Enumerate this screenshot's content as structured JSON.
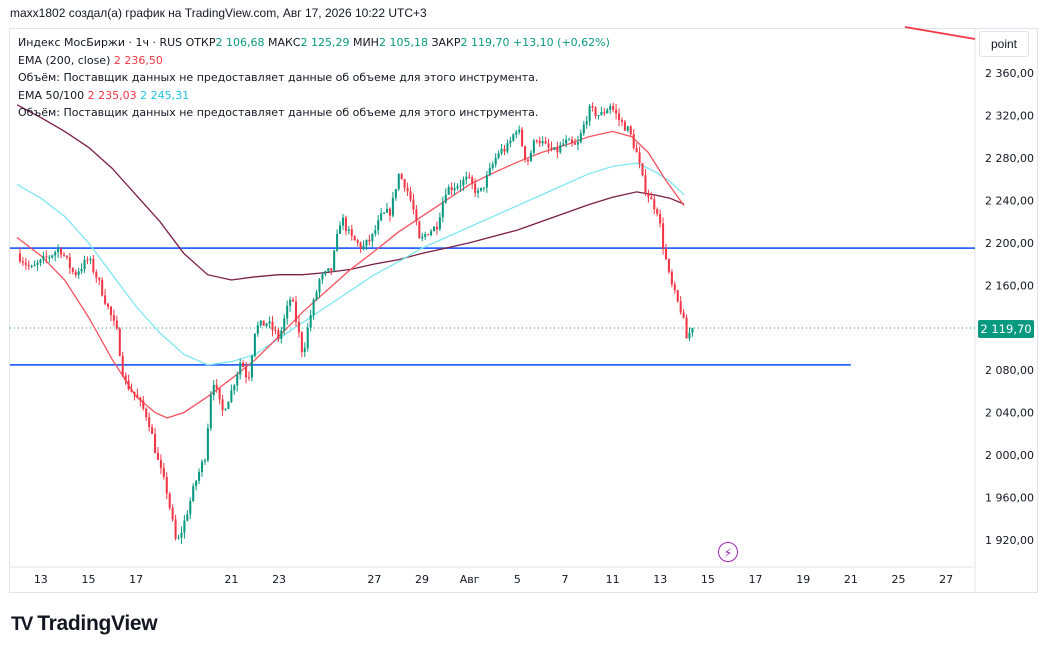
{
  "header": {
    "caption": "maxx1802 создал(а) график на TradingView.com, Авг 17, 2026 10:22 UTC+3"
  },
  "legend": {
    "instrument": "Индекс МосБиржи · 1ч · RUS",
    "open_label": "ОТКР",
    "open_value": "2 106,68",
    "high_label": "МАКС",
    "high_value": "2 125,29",
    "low_label": "МИН",
    "low_value": "2 105,18",
    "close_label": "ЗАКР",
    "close_value": "2 119,70",
    "change": "+13,10 (+0,62%)",
    "volume_note": "Объём: Поставщик данных не предоставляет данные об объеме для этого инструмента.",
    "ema200_label": "EMA (200, close)",
    "ema200_value": "2 236,50",
    "ema50_100_label": "EMA 50/100",
    "ema50_value": "2 235,03",
    "ema100_value": "2 245,31",
    "volume_note2": "Объём: Поставщик данных не предоставляет данные об объеме для этого инструмента."
  },
  "toolbar": {
    "point_label": "point"
  },
  "price_badge": {
    "value": "2 119,70",
    "color": "#089981"
  },
  "event_icon": "lightning-icon",
  "branding": {
    "logo_text": "TradingView",
    "mark": "TV"
  },
  "chart_data": {
    "type": "candlestick",
    "y_ticks": [
      {
        "value": 2360,
        "label": "2 360,00"
      },
      {
        "value": 2320,
        "label": "2 320,00"
      },
      {
        "value": 2280,
        "label": "2 280,00"
      },
      {
        "value": 2240,
        "label": "2 240,00"
      },
      {
        "value": 2200,
        "label": "2 200,00"
      },
      {
        "value": 2160,
        "label": "2 160,00"
      },
      {
        "value": 2120,
        "label": "2 120,00"
      },
      {
        "value": 2080,
        "label": "2 080,00"
      },
      {
        "value": 2040,
        "label": "2 040,00"
      },
      {
        "value": 2000,
        "label": "2 000,00"
      },
      {
        "value": 1960,
        "label": "1 960,00"
      },
      {
        "value": 1920,
        "label": "1 920,00"
      }
    ],
    "x_ticks": [
      {
        "day": 13,
        "label": "13"
      },
      {
        "day": 15,
        "label": "15"
      },
      {
        "day": 17,
        "label": "17"
      },
      {
        "day": 21,
        "label": "21"
      },
      {
        "day": 23,
        "label": "23"
      },
      {
        "day": 27,
        "label": "27"
      },
      {
        "day": 29,
        "label": "29"
      },
      {
        "day": 31,
        "label": "Авг"
      },
      {
        "day": 33,
        "label": "5"
      },
      {
        "day": 35,
        "label": "7"
      },
      {
        "day": 37,
        "label": "11"
      },
      {
        "day": 39,
        "label": "13"
      },
      {
        "day": 41,
        "label": "15"
      },
      {
        "day": 43,
        "label": "17"
      },
      {
        "day": 45,
        "label": "19"
      },
      {
        "day": 47,
        "label": "21"
      },
      {
        "day": 49,
        "label": "25"
      },
      {
        "day": 51,
        "label": "27"
      }
    ],
    "ylim": [
      1900,
      2385
    ],
    "horizontal_lines": [
      {
        "value": 2195,
        "color": "#2962ff"
      },
      {
        "value": 2085,
        "color": "#2962ff"
      }
    ],
    "last_price_line": {
      "value": 2119.7
    },
    "close_anchors": [
      [
        12.0,
        2190
      ],
      [
        12.6,
        2175
      ],
      [
        13.2,
        2185
      ],
      [
        13.8,
        2195
      ],
      [
        14.4,
        2170
      ],
      [
        15.0,
        2185
      ],
      [
        15.4,
        2165
      ],
      [
        15.8,
        2140
      ],
      [
        16.2,
        2115
      ],
      [
        16.5,
        2070
      ],
      [
        17.0,
        2055
      ],
      [
        17.5,
        2035
      ],
      [
        17.9,
        1995
      ],
      [
        18.3,
        1965
      ],
      [
        18.7,
        1915
      ],
      [
        19.0,
        1935
      ],
      [
        19.5,
        1975
      ],
      [
        19.9,
        2000
      ],
      [
        20.2,
        2075
      ],
      [
        20.6,
        2040
      ],
      [
        21.0,
        2060
      ],
      [
        21.4,
        2090
      ],
      [
        21.7,
        2070
      ],
      [
        22.0,
        2120
      ],
      [
        22.5,
        2125
      ],
      [
        23.0,
        2110
      ],
      [
        23.5,
        2150
      ],
      [
        24.0,
        2095
      ],
      [
        24.3,
        2130
      ],
      [
        24.7,
        2165
      ],
      [
        25.2,
        2175
      ],
      [
        25.6,
        2225
      ],
      [
        26.0,
        2205
      ],
      [
        26.5,
        2195
      ],
      [
        26.9,
        2205
      ],
      [
        27.3,
        2225
      ],
      [
        27.7,
        2230
      ],
      [
        28.0,
        2265
      ],
      [
        28.3,
        2255
      ],
      [
        28.6,
        2235
      ],
      [
        28.9,
        2200
      ],
      [
        29.2,
        2210
      ],
      [
        29.6,
        2215
      ],
      [
        30.0,
        2250
      ],
      [
        30.5,
        2255
      ],
      [
        30.9,
        2260
      ],
      [
        31.4,
        2245
      ],
      [
        31.8,
        2265
      ],
      [
        32.2,
        2285
      ],
      [
        32.6,
        2290
      ],
      [
        33.0,
        2310
      ],
      [
        33.4,
        2275
      ],
      [
        33.8,
        2300
      ],
      [
        34.2,
        2290
      ],
      [
        34.6,
        2285
      ],
      [
        35.0,
        2295
      ],
      [
        35.5,
        2290
      ],
      [
        36.0,
        2325
      ],
      [
        36.5,
        2320
      ],
      [
        36.9,
        2330
      ],
      [
        37.3,
        2315
      ],
      [
        37.7,
        2305
      ],
      [
        38.0,
        2285
      ],
      [
        38.3,
        2255
      ],
      [
        38.6,
        2240
      ],
      [
        38.9,
        2230
      ],
      [
        39.1,
        2200
      ],
      [
        39.4,
        2165
      ],
      [
        39.7,
        2145
      ],
      [
        39.9,
        2135
      ],
      [
        40.1,
        2110
      ],
      [
        40.35,
        2119.7
      ]
    ],
    "ema200": [
      [
        12.0,
        2330
      ],
      [
        13.0,
        2318
      ],
      [
        14.0,
        2305
      ],
      [
        15.0,
        2290
      ],
      [
        16.0,
        2270
      ],
      [
        17.0,
        2245
      ],
      [
        18.0,
        2220
      ],
      [
        19.0,
        2190
      ],
      [
        20.0,
        2170
      ],
      [
        21.0,
        2165
      ],
      [
        22.0,
        2168
      ],
      [
        23.0,
        2170
      ],
      [
        24.0,
        2170
      ],
      [
        25.0,
        2172
      ],
      [
        26.0,
        2175
      ],
      [
        27.0,
        2180
      ],
      [
        28.0,
        2184
      ],
      [
        29.0,
        2190
      ],
      [
        30.0,
        2195
      ],
      [
        31.0,
        2200
      ],
      [
        32.0,
        2206
      ],
      [
        33.0,
        2212
      ],
      [
        34.0,
        2220
      ],
      [
        35.0,
        2228
      ],
      [
        36.0,
        2236
      ],
      [
        37.0,
        2243
      ],
      [
        38.0,
        2248
      ],
      [
        38.8,
        2245
      ],
      [
        39.4,
        2242
      ],
      [
        40.0,
        2236.5
      ]
    ],
    "ema100": [
      [
        12.0,
        2255
      ],
      [
        13.0,
        2242
      ],
      [
        14.0,
        2225
      ],
      [
        15.0,
        2200
      ],
      [
        16.0,
        2170
      ],
      [
        17.0,
        2140
      ],
      [
        18.0,
        2115
      ],
      [
        19.0,
        2095
      ],
      [
        20.0,
        2085
      ],
      [
        21.0,
        2088
      ],
      [
        22.0,
        2095
      ],
      [
        23.0,
        2110
      ],
      [
        24.0,
        2125
      ],
      [
        25.0,
        2140
      ],
      [
        26.0,
        2155
      ],
      [
        27.0,
        2170
      ],
      [
        28.0,
        2182
      ],
      [
        29.0,
        2195
      ],
      [
        30.0,
        2205
      ],
      [
        31.0,
        2215
      ],
      [
        32.0,
        2225
      ],
      [
        33.0,
        2235
      ],
      [
        34.0,
        2245
      ],
      [
        35.0,
        2255
      ],
      [
        36.0,
        2265
      ],
      [
        37.0,
        2272
      ],
      [
        38.0,
        2275
      ],
      [
        38.7,
        2268
      ],
      [
        39.4,
        2258
      ],
      [
        40.0,
        2245.3
      ]
    ],
    "ema50": [
      [
        12.0,
        2205
      ],
      [
        13.0,
        2188
      ],
      [
        14.0,
        2165
      ],
      [
        15.0,
        2130
      ],
      [
        16.0,
        2090
      ],
      [
        17.0,
        2055
      ],
      [
        17.8,
        2040
      ],
      [
        18.3,
        2035
      ],
      [
        19.0,
        2040
      ],
      [
        20.0,
        2055
      ],
      [
        21.0,
        2072
      ],
      [
        22.0,
        2090
      ],
      [
        23.0,
        2112
      ],
      [
        24.0,
        2135
      ],
      [
        25.0,
        2155
      ],
      [
        26.0,
        2175
      ],
      [
        27.0,
        2192
      ],
      [
        28.0,
        2210
      ],
      [
        29.0,
        2225
      ],
      [
        30.0,
        2240
      ],
      [
        31.0,
        2255
      ],
      [
        32.0,
        2266
      ],
      [
        33.0,
        2276
      ],
      [
        34.0,
        2285
      ],
      [
        35.0,
        2292
      ],
      [
        36.0,
        2300
      ],
      [
        37.0,
        2305
      ],
      [
        37.8,
        2300
      ],
      [
        38.5,
        2285
      ],
      [
        39.2,
        2260
      ],
      [
        40.0,
        2235.0
      ]
    ],
    "ema50_color": "#f7525f",
    "ema100_color": "#7fe7f3",
    "ema200_color": "#7b1e44",
    "up_color": "#089981",
    "down_color": "#f23645"
  }
}
